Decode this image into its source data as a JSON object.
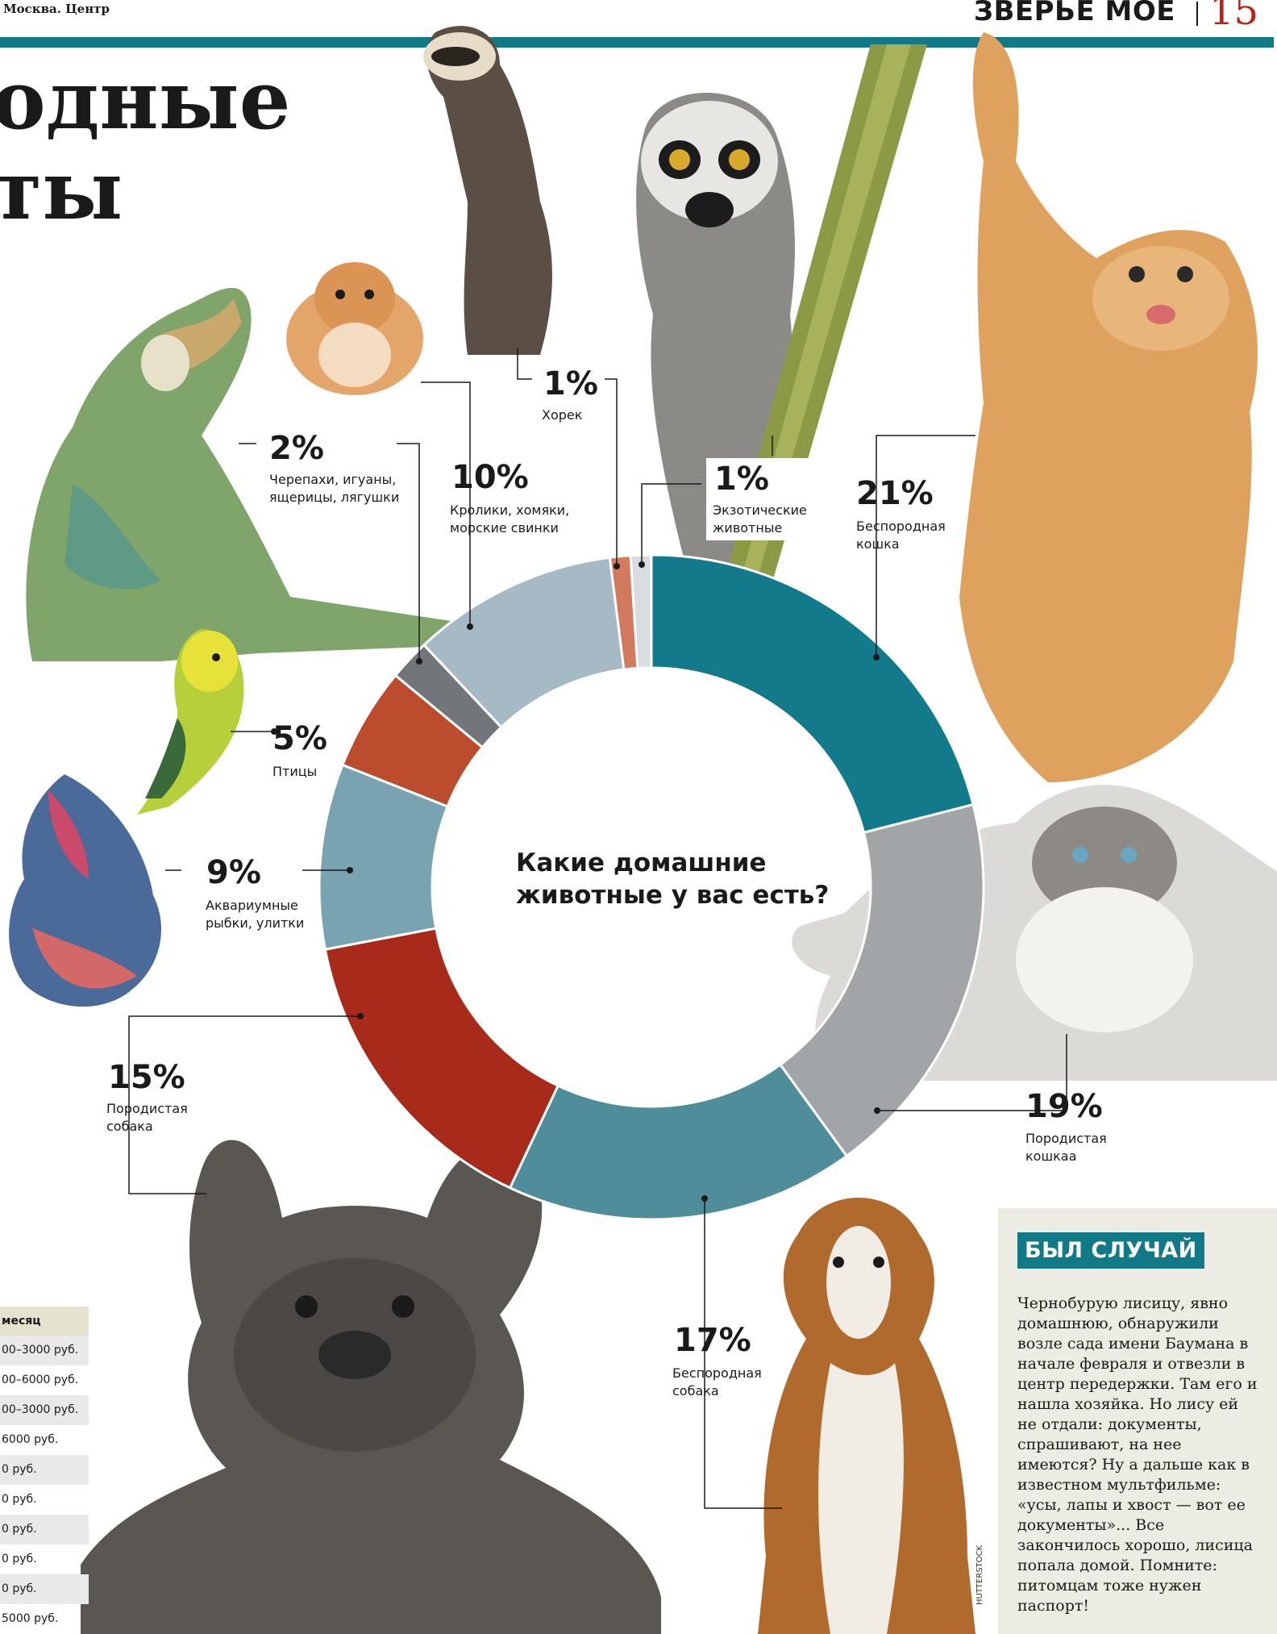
{
  "header": {
    "section": "Москва. Центр",
    "rubric": "ЗВЕРЬЕ МОЕ",
    "page_number": "15"
  },
  "headline": {
    "line1": "одные",
    "line2": "ты"
  },
  "chart_data": {
    "type": "donut",
    "title": "Какие домашние\nживотные у вас есть?",
    "series": [
      {
        "label": "21%",
        "value": 21,
        "name": "Беспородная\nкошка",
        "color": "#127a8a"
      },
      {
        "label": "19%",
        "value": 19,
        "name": "Породистая\nкошкаа",
        "color": "#a2a5a8"
      },
      {
        "label": "17%",
        "value": 17,
        "name": "Беспородная\nсобака",
        "color": "#4f8d9b"
      },
      {
        "label": "15%",
        "value": 15,
        "name": "Породистая\nсобака",
        "color": "#a82a1a"
      },
      {
        "label": "9%",
        "value": 9,
        "name": "Аквариумные\nрыбки, улитки",
        "color": "#7aa3b1"
      },
      {
        "label": "5%",
        "value": 5,
        "name": "Птицы",
        "color": "#bb4d2e"
      },
      {
        "label": "2%",
        "value": 2,
        "name": "Черепахи, игуаны,\nящерицы, лягушки",
        "color": "#727579"
      },
      {
        "label": "10%",
        "value": 10,
        "name": "Кролики, хомяки,\nморские свинки",
        "color": "#a6bac5"
      },
      {
        "label": "1%",
        "value": 1,
        "name": "Хорек",
        "color": "#d17a5e"
      },
      {
        "label": "1%",
        "value": 1,
        "name": "Экзотические\nживотные",
        "color": "#d9dcdf"
      }
    ]
  },
  "sidebar": {
    "tag": "БЫЛ СЛУЧАЙ",
    "text": "Чернобурую лисицу, явно домашнюю, обнаружили возле сада имени Баумана в начале февраля и отвезли в центр передержки. Там его и нашла хозяйка. Но лису ей не отдали: документы, спрашивают, на нее имеются? Ну а дальше как в известном мультфильме: «усы, лапы и хвост — вот ее документы»... Все закончилось хорошо, лисица попала домой. Помните: питомцам тоже нужен паспорт!"
  },
  "price_table": {
    "header": "месяц",
    "rows": [
      "00–3000 руб.",
      "00–6000 руб.",
      "00–3000 руб.",
      "6000 руб.",
      "0 руб.",
      "0 руб.",
      "0 руб.",
      "0 руб.",
      "0 руб.",
      "5000 руб."
    ]
  },
  "photo_credit": "HUTTERSTOCK"
}
